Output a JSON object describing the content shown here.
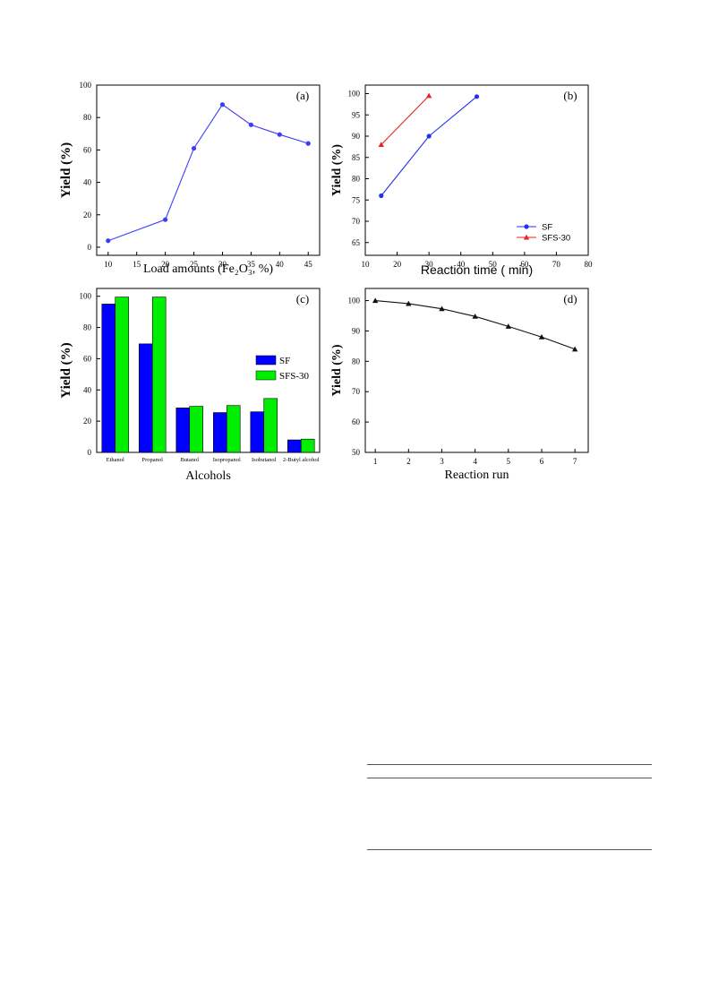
{
  "chart_data": [
    {
      "panel": "(a)",
      "type": "line",
      "xlabel": "Load amounts (Fe₂O₃, %)",
      "ylabel": "Yield (%)",
      "xlim": [
        8,
        47
      ],
      "ylim": [
        -5,
        100
      ],
      "xticks": [
        10,
        15,
        20,
        25,
        30,
        35,
        40,
        45
      ],
      "yticks": [
        0,
        20,
        40,
        60,
        80,
        100
      ],
      "legend": "none",
      "grid": false,
      "series": [
        {
          "color": "#3b3bff",
          "marker": "circle",
          "x": [
            10,
            20,
            25,
            30,
            35,
            40,
            45
          ],
          "y": [
            4,
            17,
            61,
            88,
            75.5,
            69.5,
            64
          ]
        }
      ]
    },
    {
      "panel": "(b)",
      "type": "line",
      "xlabel": "Reaction time ( min)",
      "ylabel": "Yield (%)",
      "xlim": [
        10,
        80
      ],
      "ylim": [
        62,
        102
      ],
      "xticks": [
        10,
        20,
        30,
        40,
        50,
        60,
        70,
        80
      ],
      "yticks": [
        65,
        70,
        75,
        80,
        85,
        90,
        95,
        100
      ],
      "legend": "bottom-right",
      "grid": false,
      "series": [
        {
          "name": "SF",
          "color": "#2233ee",
          "marker": "circle",
          "x": [
            15,
            30,
            45
          ],
          "y": [
            76,
            90,
            99.3
          ]
        },
        {
          "name": "SFS-30",
          "color": "#ee2222",
          "marker": "triangle",
          "x": [
            15,
            30
          ],
          "y": [
            88,
            99.5
          ]
        }
      ]
    },
    {
      "panel": "(c)",
      "type": "bar",
      "xlabel": "Alcohols",
      "ylabel": "Yield (%)",
      "ylim": [
        0,
        105
      ],
      "yticks": [
        0,
        20,
        40,
        60,
        80,
        100
      ],
      "legend": "right",
      "grid": false,
      "categories": [
        "Ethanol",
        "Propanol",
        "Butanol",
        "Isopropanol",
        "Isobutanol",
        "2-Butyl alcohol"
      ],
      "series": [
        {
          "name": "SF",
          "color": "#0000ff",
          "values": [
            95,
            69.5,
            28.5,
            25.5,
            26,
            8
          ]
        },
        {
          "name": "SFS-30",
          "color": "#00ee00",
          "values": [
            99.5,
            99.5,
            29.5,
            30,
            34.5,
            8.5
          ]
        }
      ]
    },
    {
      "panel": "(d)",
      "type": "line",
      "xlabel": "Reaction run",
      "ylabel": "Yield (%)",
      "xlim": [
        0.7,
        7.4
      ],
      "ylim": [
        50,
        104
      ],
      "xticks": [
        1,
        2,
        3,
        4,
        5,
        6,
        7
      ],
      "yticks": [
        50,
        60,
        70,
        80,
        90,
        100
      ],
      "legend": "none",
      "grid": false,
      "series": [
        {
          "color": "#111111",
          "marker": "triangle",
          "x": [
            1,
            2,
            3,
            4,
            5,
            6,
            7
          ],
          "y": [
            100,
            99,
            97.3,
            94.8,
            91.5,
            88,
            84
          ]
        }
      ]
    }
  ]
}
